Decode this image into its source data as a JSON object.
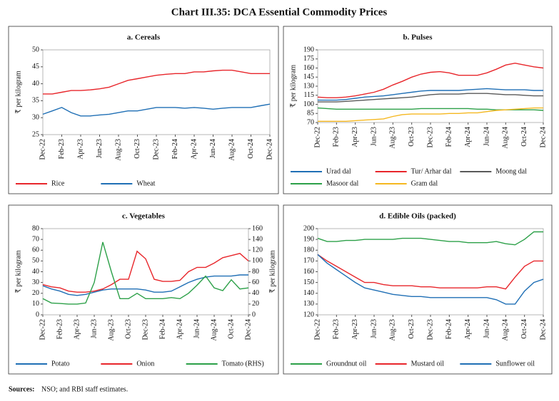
{
  "title": "Chart III.35: DCA Essential Commodity Prices",
  "source_label": "Sources:",
  "source": "NSO; and RBI staff estimates.",
  "chart_data": [
    {
      "type": "line",
      "title": "a. Cereals",
      "ylabel": "₹ per kilogram",
      "categories": [
        "Dec-22",
        null,
        "Feb-23",
        null,
        "Apr-23",
        null,
        "Jun-23",
        null,
        "Aug-23",
        null,
        "Oct-23",
        null,
        "Dec-23",
        null,
        "Feb-24",
        null,
        "Apr-24",
        null,
        "Jun-24",
        null,
        "Aug-24",
        null,
        "Oct-24",
        null,
        "Dec-24"
      ],
      "ylim": [
        25,
        50
      ],
      "yticks": [
        25,
        30,
        35,
        40,
        45,
        50
      ],
      "grid": false,
      "series": [
        {
          "name": "Rice",
          "color": "#e8262b",
          "values": [
            37,
            37,
            37.5,
            38,
            38,
            38.2,
            38.5,
            39,
            40,
            41,
            41.5,
            42,
            42.5,
            42.8,
            43,
            43,
            43.5,
            43.5,
            43.8,
            44,
            44,
            43.5,
            43,
            43,
            43
          ]
        },
        {
          "name": "Wheat",
          "color": "#1f6fb5",
          "values": [
            31,
            32,
            33,
            31.5,
            30.5,
            30.5,
            30.8,
            31,
            31.5,
            32,
            32,
            32.5,
            33,
            33,
            33,
            32.8,
            33,
            32.8,
            32.5,
            32.8,
            33,
            33,
            33,
            33.5,
            34
          ]
        }
      ]
    },
    {
      "type": "line",
      "title": "b. Pulses",
      "ylabel": "₹ per kilogram",
      "categories": [
        "Dec-22",
        null,
        "Feb-23",
        null,
        "Apr-23",
        null,
        "Jun-23",
        null,
        "Aug-23",
        null,
        "Oct-23",
        null,
        "Dec-23",
        null,
        "Feb-24",
        null,
        "Apr-24",
        null,
        "Jun-24",
        null,
        "Aug-24",
        null,
        "Oct-24",
        null,
        "Dec-24"
      ],
      "ylim": [
        70,
        190
      ],
      "yticks": [
        70,
        85,
        100,
        115,
        130,
        145,
        160,
        175,
        190
      ],
      "grid": false,
      "series": [
        {
          "name": "Urad dal",
          "color": "#1f6fb5",
          "values": [
            107,
            107,
            107,
            108,
            110,
            112,
            113,
            114,
            116,
            118,
            120,
            122,
            123,
            123,
            123,
            123,
            124,
            125,
            126,
            125,
            124,
            124,
            124,
            123,
            123
          ]
        },
        {
          "name": "Tur/ Arhar dal",
          "color": "#e8262b",
          "values": [
            112,
            111,
            111,
            112,
            114,
            117,
            120,
            125,
            132,
            138,
            145,
            150,
            153,
            154,
            152,
            148,
            148,
            148,
            152,
            158,
            165,
            168,
            165,
            162,
            160
          ]
        },
        {
          "name": "Moong dal",
          "color": "#595959",
          "values": [
            104,
            104,
            104,
            105,
            106,
            107,
            108,
            109,
            110,
            111,
            112,
            114,
            116,
            117,
            117,
            117,
            118,
            118,
            118,
            117,
            116,
            116,
            115,
            114,
            114
          ]
        },
        {
          "name": "Masoor dal",
          "color": "#2ca048",
          "values": [
            94,
            93,
            92,
            92,
            92,
            92,
            92,
            92,
            92,
            92,
            92,
            93,
            93,
            93,
            93,
            93,
            93,
            92,
            92,
            91,
            91,
            91,
            91,
            91,
            90
          ]
        },
        {
          "name": "Gram dal",
          "color": "#f5b820",
          "values": [
            72,
            72,
            72,
            72,
            73,
            74,
            75,
            76,
            80,
            83,
            84,
            84,
            84,
            84,
            85,
            85,
            86,
            86,
            88,
            90,
            91,
            92,
            93,
            94,
            94
          ]
        }
      ]
    },
    {
      "type": "line",
      "title": "c. Vegetables",
      "ylabel": "₹ per kilogram",
      "y2label": "₹ per kilogram",
      "categories": [
        "Dec-22",
        null,
        "Feb-23",
        null,
        "Apr-23",
        null,
        "Jun-23",
        null,
        "Aug-23",
        null,
        "Oct-23",
        null,
        "Dec-23",
        null,
        "Feb-24",
        null,
        "Apr-24",
        null,
        "Jun-24",
        null,
        "Aug-24",
        null,
        "Oct-24",
        null,
        "Dec-24"
      ],
      "ylim": [
        0,
        80
      ],
      "yticks": [
        0,
        10,
        20,
        30,
        40,
        50,
        60,
        70,
        80
      ],
      "y2lim": [
        0,
        160
      ],
      "y2ticks": [
        0,
        20,
        40,
        60,
        80,
        100,
        120,
        140,
        160
      ],
      "grid": false,
      "series": [
        {
          "name": "Potato",
          "color": "#1f6fb5",
          "values": [
            27,
            24,
            22,
            19,
            18,
            19,
            21,
            23,
            24,
            24,
            24,
            24,
            23,
            21,
            21,
            22,
            26,
            30,
            33,
            35,
            36,
            36,
            36,
            37,
            37
          ]
        },
        {
          "name": "Onion",
          "color": "#e8262b",
          "values": [
            28,
            26,
            25,
            22,
            21,
            21,
            22,
            24,
            28,
            33,
            33,
            59,
            52,
            33,
            31,
            31,
            32,
            40,
            44,
            44,
            48,
            53,
            55,
            57,
            50
          ]
        },
        {
          "name": "Tomato (RHS)",
          "color": "#2ca048",
          "axis": "y2",
          "values": [
            30,
            22,
            21,
            20,
            20,
            22,
            60,
            135,
            80,
            30,
            30,
            40,
            30,
            30,
            30,
            32,
            30,
            40,
            55,
            72,
            50,
            45,
            65,
            48,
            50
          ]
        }
      ]
    },
    {
      "type": "line",
      "title": "d. Edible Oils (packed)",
      "categories": [
        "Dec-22",
        null,
        "Feb-23",
        null,
        "Apr-23",
        null,
        "Jun-23",
        null,
        "Aug-23",
        null,
        "Oct-23",
        null,
        "Dec-23",
        null,
        "Feb-24",
        null,
        "Apr-24",
        null,
        "Jun-24",
        null,
        "Aug-24",
        null,
        "Oct-24",
        null,
        "Dec-24"
      ],
      "ylim": [
        120,
        200
      ],
      "yticks": [
        120,
        130,
        140,
        150,
        160,
        170,
        180,
        190,
        200
      ],
      "grid": false,
      "series": [
        {
          "name": "Groundnut oil",
          "color": "#2ca048",
          "values": [
            191,
            188,
            188,
            189,
            189,
            190,
            190,
            190,
            190,
            191,
            191,
            191,
            190,
            189,
            188,
            188,
            187,
            187,
            187,
            188,
            186,
            185,
            190,
            197,
            197
          ]
        },
        {
          "name": "Mustard oil",
          "color": "#e8262b",
          "values": [
            176,
            170,
            165,
            160,
            155,
            150,
            150,
            148,
            147,
            147,
            147,
            146,
            146,
            145,
            145,
            145,
            145,
            145,
            146,
            146,
            144,
            155,
            165,
            170,
            170
          ]
        },
        {
          "name": "Sunflower oil",
          "color": "#1f6fb5",
          "values": [
            176,
            168,
            162,
            156,
            150,
            145,
            143,
            141,
            139,
            138,
            137,
            137,
            136,
            136,
            136,
            136,
            136,
            136,
            136,
            134,
            130,
            130,
            142,
            150,
            153
          ]
        }
      ]
    }
  ]
}
